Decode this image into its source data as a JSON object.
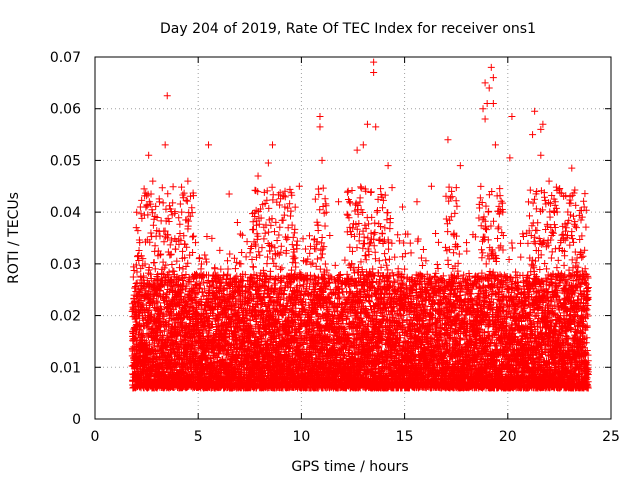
{
  "chart_data": {
    "type": "scatter",
    "title": "Day 204 of 2019, Rate Of TEC Index for receiver ons1",
    "xlabel": "GPS time / hours",
    "ylabel": "ROTI / TECUs",
    "xlim": [
      0,
      25
    ],
    "ylim": [
      0,
      0.07
    ],
    "grid": true,
    "marker": "+",
    "color": "#ff0000",
    "x_ticks": [
      {
        "value": 0,
        "label": "0"
      },
      {
        "value": 5,
        "label": "5"
      },
      {
        "value": 10,
        "label": "10"
      },
      {
        "value": 15,
        "label": "15"
      },
      {
        "value": 20,
        "label": "20"
      },
      {
        "value": 25,
        "label": "25"
      }
    ],
    "y_ticks": [
      {
        "value": 0,
        "label": "0"
      },
      {
        "value": 0.01,
        "label": "0.01"
      },
      {
        "value": 0.02,
        "label": "0.02"
      },
      {
        "value": 0.03,
        "label": "0.03"
      },
      {
        "value": 0.04,
        "label": "0.04"
      },
      {
        "value": 0.05,
        "label": "0.05"
      },
      {
        "value": 0.06,
        "label": "0.06"
      },
      {
        "value": 0.07,
        "label": "0.07"
      }
    ],
    "x_range_observed": [
      1.8,
      23.9
    ],
    "series": [
      {
        "name": "ROTI",
        "points": [
          [
            13.5,
            0.069
          ],
          [
            13.5,
            0.067
          ],
          [
            19.2,
            0.068
          ],
          [
            19.3,
            0.066
          ],
          [
            19.1,
            0.064
          ],
          [
            18.9,
            0.065
          ],
          [
            3.5,
            0.0625
          ],
          [
            19.3,
            0.061
          ],
          [
            19.0,
            0.061
          ],
          [
            18.8,
            0.06
          ],
          [
            21.3,
            0.0595
          ],
          [
            10.9,
            0.0585
          ],
          [
            20.2,
            0.0585
          ],
          [
            10.9,
            0.0565
          ],
          [
            21.7,
            0.057
          ],
          [
            13.2,
            0.057
          ],
          [
            13.6,
            0.0565
          ],
          [
            18.9,
            0.058
          ],
          [
            21.2,
            0.055
          ],
          [
            21.6,
            0.056
          ],
          [
            3.4,
            0.053
          ],
          [
            5.5,
            0.053
          ],
          [
            8.6,
            0.053
          ],
          [
            12.7,
            0.052
          ],
          [
            13.0,
            0.053
          ],
          [
            17.1,
            0.054
          ],
          [
            19.4,
            0.053
          ],
          [
            2.6,
            0.051
          ],
          [
            11.0,
            0.05
          ],
          [
            21.6,
            0.051
          ],
          [
            6.5,
            0.0435
          ],
          [
            8.4,
            0.0495
          ],
          [
            14.2,
            0.049
          ],
          [
            17.7,
            0.049
          ],
          [
            20.1,
            0.0505
          ],
          [
            23.1,
            0.0485
          ],
          [
            2.8,
            0.046
          ],
          [
            4.5,
            0.046
          ],
          [
            7.9,
            0.047
          ],
          [
            9.9,
            0.045
          ],
          [
            16.3,
            0.045
          ],
          [
            22.0,
            0.046
          ],
          [
            2.2,
            0.041
          ],
          [
            4.2,
            0.04
          ],
          [
            6.9,
            0.038
          ],
          [
            9.2,
            0.041
          ],
          [
            11.8,
            0.042
          ],
          [
            14.9,
            0.041
          ],
          [
            15.6,
            0.042
          ],
          [
            17.3,
            0.043
          ],
          [
            21.4,
            0.044
          ],
          [
            22.3,
            0.042
          ],
          [
            23.7,
            0.041
          ],
          [
            2.0,
            0.037
          ]
        ],
        "band": {
          "x_start": 1.8,
          "x_end": 23.9,
          "dense_low": 0.006,
          "dense_high": 0.028,
          "spike_high": 0.045,
          "active_intervals": [
            [
              2.0,
              4.8
            ],
            [
              7.6,
              9.8
            ],
            [
              10.6,
              11.2
            ],
            [
              12.2,
              14.4
            ],
            [
              17.0,
              17.6
            ],
            [
              18.6,
              19.8
            ],
            [
              21.0,
              23.8
            ]
          ]
        }
      }
    ]
  }
}
